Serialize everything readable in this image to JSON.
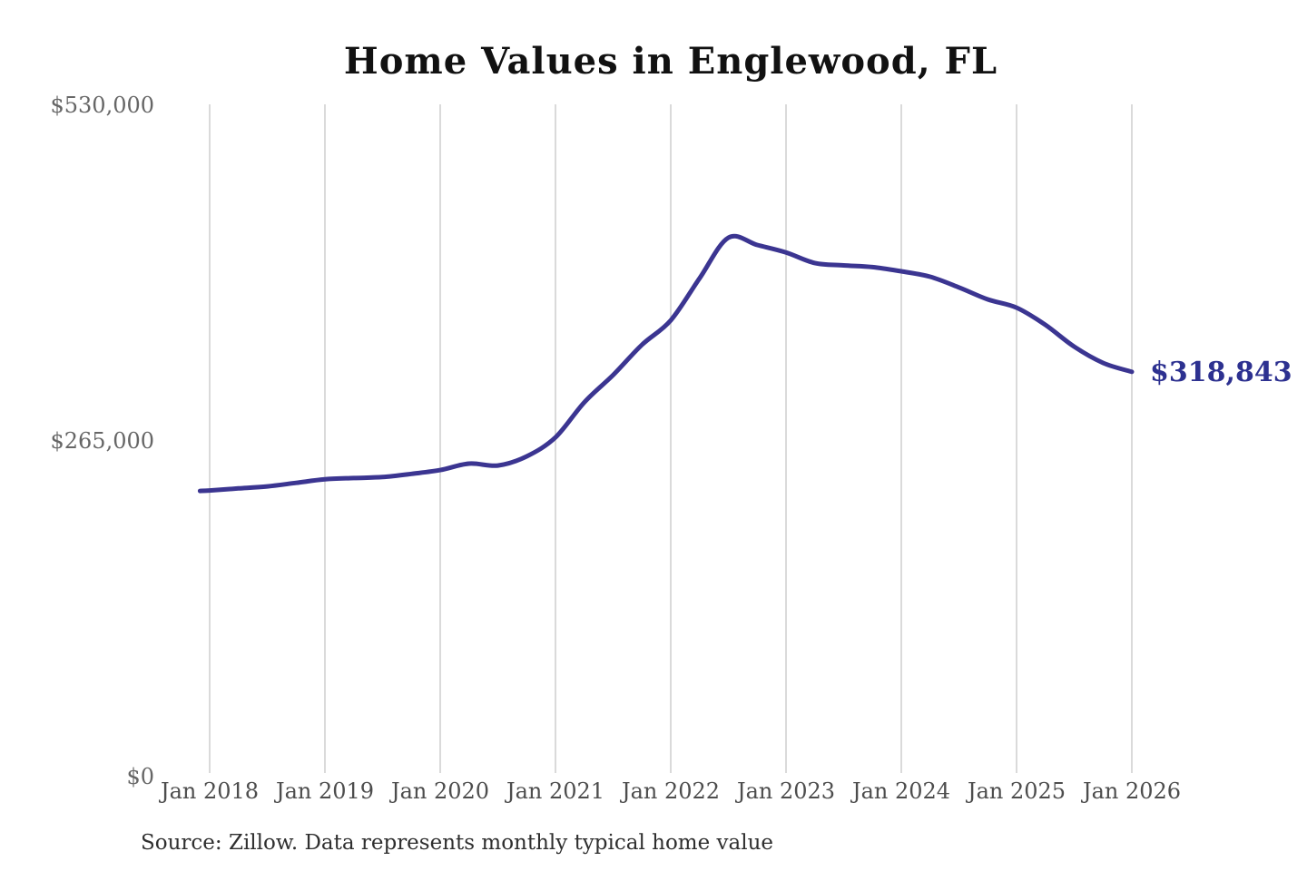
{
  "colors": {
    "background": "#ffffff",
    "title": "#111111",
    "gridline": "#cbcbcb",
    "y_tick": "#666666",
    "x_tick": "#4d4d4d",
    "source": "#2f2f2f"
  },
  "chart_data": {
    "type": "line",
    "title": "Home Values in Englewood, FL",
    "series_name": "Monthly typical home value",
    "x": [
      "Dec 2017",
      "Jan 2018",
      "Apr 2018",
      "Jul 2018",
      "Oct 2018",
      "Jan 2019",
      "Apr 2019",
      "Jul 2019",
      "Oct 2019",
      "Jan 2020",
      "Apr 2020",
      "Jul 2020",
      "Oct 2020",
      "Jan 2021",
      "Apr 2021",
      "Jul 2021",
      "Oct 2021",
      "Jan 2022",
      "Apr 2022",
      "Jul 2022",
      "Oct 2022",
      "Jan 2023",
      "Apr 2023",
      "Jul 2023",
      "Oct 2023",
      "Jan 2024",
      "Apr 2024",
      "Jul 2024",
      "Oct 2024",
      "Jan 2025",
      "Apr 2025",
      "Jul 2025",
      "Oct 2025",
      "Jan 2026"
    ],
    "values": [
      224800,
      225200,
      226800,
      228400,
      231200,
      234000,
      235000,
      235800,
      238300,
      241300,
      246400,
      244900,
      252100,
      267100,
      294800,
      316300,
      340200,
      359500,
      392700,
      424700,
      419000,
      413100,
      404700,
      402900,
      401500,
      398200,
      393900,
      385500,
      376000,
      369500,
      355900,
      338700,
      325900,
      318843
    ],
    "x_tick_labels": [
      "Jan 2018",
      "Jan 2019",
      "Jan 2020",
      "Jan 2021",
      "Jan 2022",
      "Jan 2023",
      "Jan 2024",
      "Jan 2025",
      "Jan 2026"
    ],
    "y_ticks": [
      {
        "value": 0,
        "label": "$0"
      },
      {
        "value": 265000,
        "label": "$265,000"
      },
      {
        "value": 530000,
        "label": "$530,000"
      }
    ],
    "ylim": [
      0,
      530000
    ],
    "xlabel": "",
    "ylabel": "",
    "grid": "vertical-only",
    "legend": "none",
    "line_color": "#3b3591",
    "end_annotation": {
      "text": "$318,843",
      "value": 318843,
      "color": "#2d3190"
    },
    "source": "Source: Zillow. Data represents monthly typical home value"
  }
}
